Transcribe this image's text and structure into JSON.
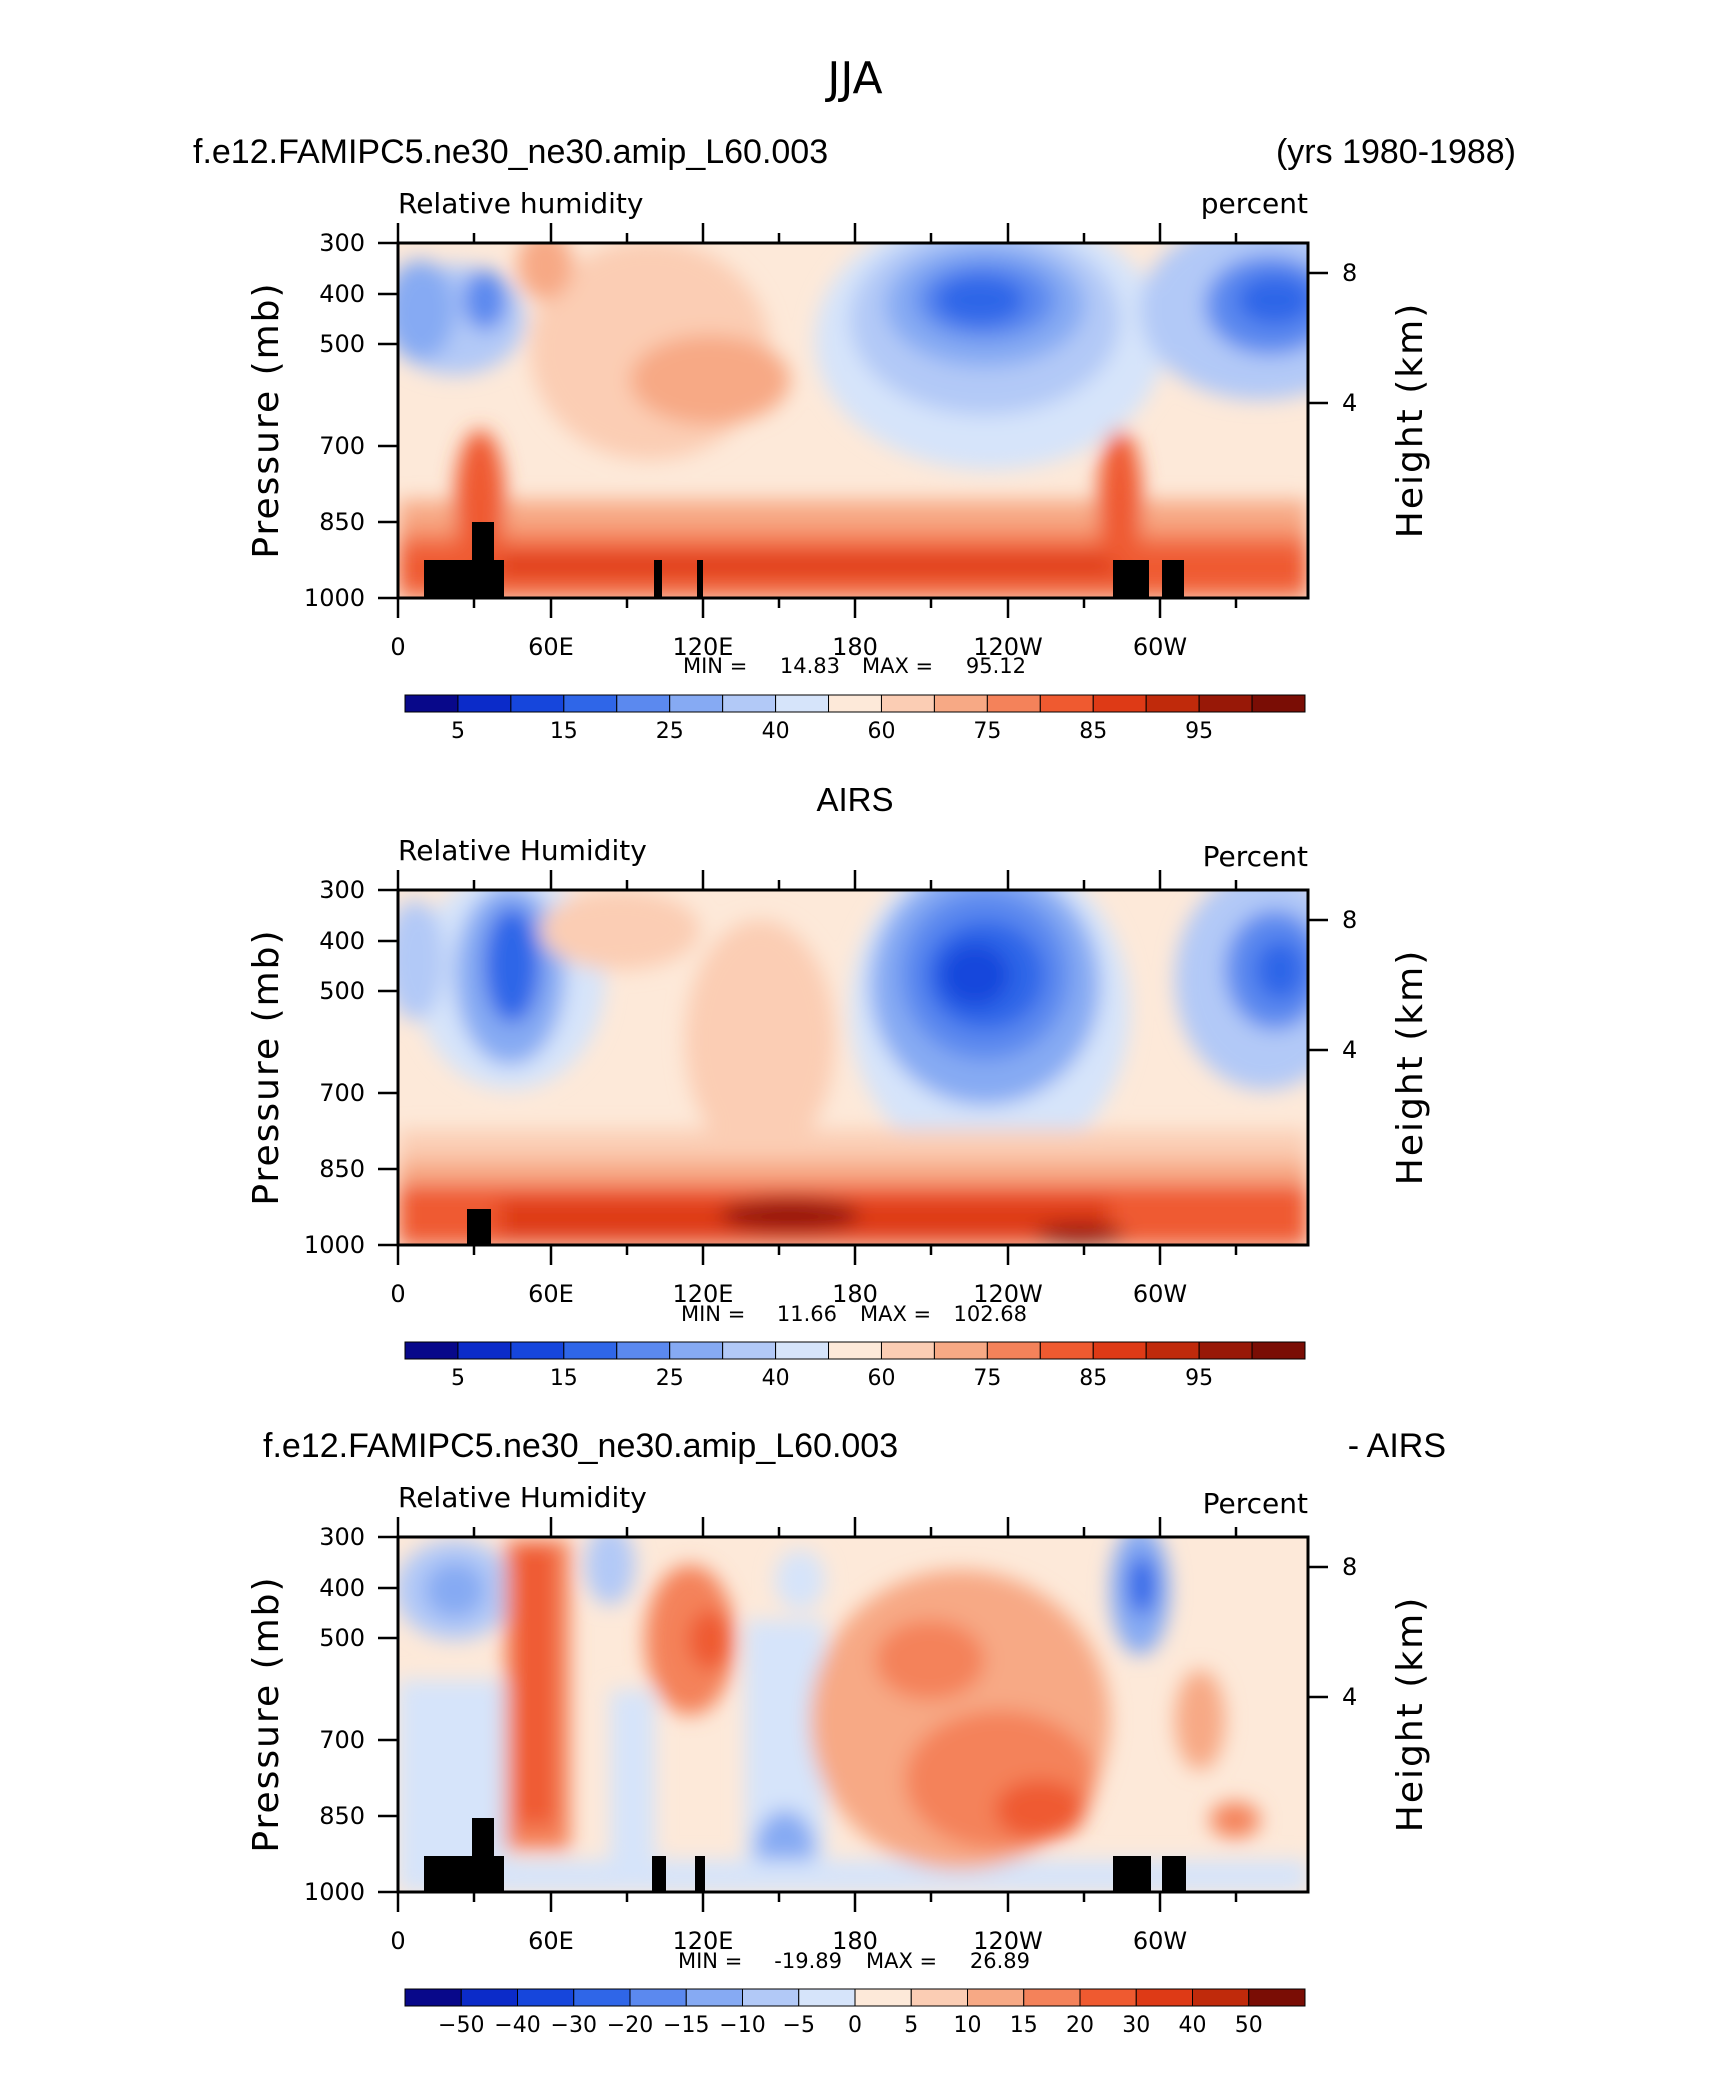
{
  "figure": {
    "title": "JJA",
    "case_name": "f.e12.FAMIPC5.ne30_ne30.amip_L60.003",
    "years": "(yrs 1980-1988)"
  },
  "colors": {
    "rh_levels": [
      "#08088a",
      "#0b2bc9",
      "#1646dc",
      "#2f66e8",
      "#5b89ef",
      "#86aaf3",
      "#b2c9f7",
      "#d6e4fa",
      "#fde9d9",
      "#fbcdb4",
      "#f7a985",
      "#f4825a",
      "#ef5a30",
      "#de3a16",
      "#c02a0b",
      "#981807",
      "#7a0d05"
    ],
    "diff_levels": [
      "#08088a",
      "#0b2bc9",
      "#1646dc",
      "#2f66e8",
      "#5b89ef",
      "#86aaf3",
      "#b2c9f7",
      "#d6e4fa",
      "#fde9d9",
      "#fbcdb4",
      "#f7a985",
      "#f4825a",
      "#ef5a30",
      "#de3a16",
      "#c02a0b",
      "#7a0d05"
    ],
    "terrain": "#000000"
  },
  "chart_data": [
    {
      "type": "heatmap",
      "panel_title_left": "f.e12.FAMIPC5.ne30_ne30.amip_L60.003",
      "panel_title_right": "(yrs 1980-1988)",
      "field_name": "Relative humidity",
      "units": "percent",
      "ylabel": "Pressure (mb)",
      "ylabel_right": "Height (km)",
      "x_ticks": [
        "0",
        "60E",
        "120E",
        "180",
        "120W",
        "60W"
      ],
      "y_ticks": [
        "300",
        "400",
        "500",
        "700",
        "850",
        "1000"
      ],
      "y_right_ticks": [
        "8",
        "4"
      ],
      "min_label": "MIN =",
      "min_value": "14.83",
      "max_label": "MAX =",
      "max_value": "95.12",
      "colorbar_labels": [
        "5",
        "15",
        "25",
        "40",
        "60",
        "75",
        "85",
        "95"
      ]
    },
    {
      "type": "heatmap",
      "panel_title_center": "AIRS",
      "field_name": "Relative Humidity",
      "units": "Percent",
      "ylabel": "Pressure (mb)",
      "ylabel_right": "Height (km)",
      "x_ticks": [
        "0",
        "60E",
        "120E",
        "180",
        "120W",
        "60W"
      ],
      "y_ticks": [
        "300",
        "400",
        "500",
        "700",
        "850",
        "1000"
      ],
      "y_right_ticks": [
        "8",
        "4"
      ],
      "min_label": "MIN =",
      "min_value": "11.66",
      "max_label": "MAX =",
      "max_value": "102.68",
      "colorbar_labels": [
        "5",
        "15",
        "25",
        "40",
        "60",
        "75",
        "85",
        "95"
      ]
    },
    {
      "type": "heatmap",
      "panel_title_left": "f.e12.FAMIPC5.ne30_ne30.amip_L60.003",
      "panel_title_right": "- AIRS",
      "field_name": "Relative Humidity",
      "units": "Percent",
      "ylabel": "Pressure (mb)",
      "ylabel_right": "Height (km)",
      "x_ticks": [
        "0",
        "60E",
        "120E",
        "180",
        "120W",
        "60W"
      ],
      "y_ticks": [
        "300",
        "400",
        "500",
        "700",
        "850",
        "1000"
      ],
      "y_right_ticks": [
        "8",
        "4"
      ],
      "min_label": "MIN =",
      "min_value": "-19.89",
      "max_label": "MAX =",
      "max_value": "26.89",
      "colorbar_labels": [
        "-50",
        "-40",
        "-30",
        "-20",
        "-15",
        "-10",
        "-5",
        "0",
        "5",
        "10",
        "15",
        "20",
        "30",
        "40",
        "50"
      ]
    }
  ]
}
